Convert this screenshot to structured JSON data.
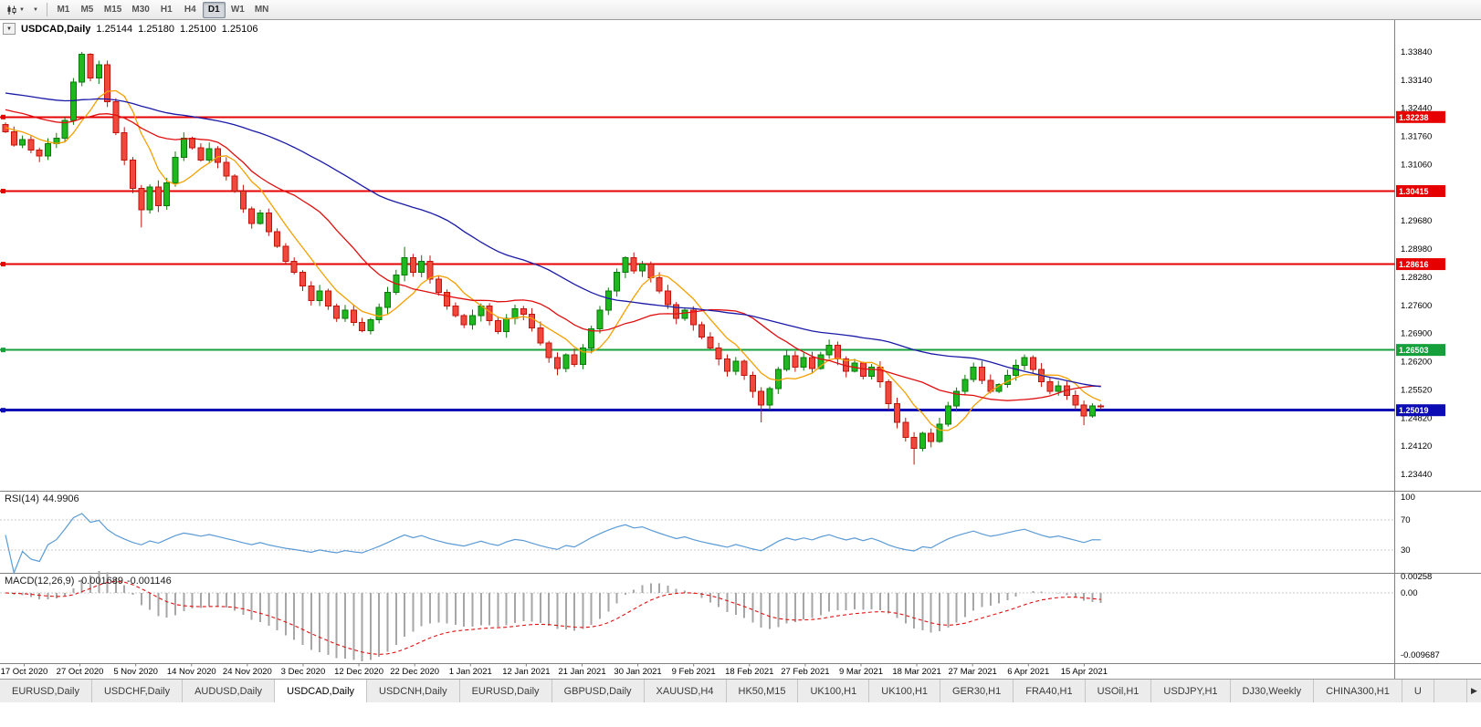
{
  "toolbar": {
    "timeframes": [
      "M1",
      "M5",
      "M15",
      "M30",
      "H1",
      "H4",
      "D1",
      "W1",
      "MN"
    ],
    "active": "D1"
  },
  "chart": {
    "header": {
      "symbol": "USDCAD,Daily",
      "open": "1.25144",
      "high": "1.25180",
      "low": "1.25100",
      "close": "1.25106"
    },
    "price_axis_labels": [
      "1.33840",
      "1.33140",
      "1.32440",
      "1.31760",
      "1.31060",
      "1.30360",
      "1.29680",
      "1.28980",
      "1.28280",
      "1.27600",
      "1.26900",
      "1.26200",
      "1.25520",
      "1.24820",
      "1.24120",
      "1.23440"
    ],
    "hlines": [
      {
        "price": 1.32238,
        "label": "1.32238",
        "color": "#e60000",
        "width": 2
      },
      {
        "price": 1.30415,
        "label": "1.30415",
        "color": "#e60000",
        "width": 2
      },
      {
        "price": 1.28616,
        "label": "1.28616",
        "color": "#e60000",
        "width": 2
      },
      {
        "price": 1.26503,
        "label": "1.26503",
        "color": "#16a03c",
        "width": 2
      },
      {
        "price": 1.25019,
        "label": "1.25019",
        "color": "#0c0cb4",
        "width": 3
      }
    ],
    "date_labels": [
      "17 Oct 2020",
      "27 Oct 2020",
      "5 Nov 2020",
      "14 Nov 2020",
      "24 Nov 2020",
      "3 Dec 2020",
      "12 Dec 2020",
      "22 Dec 2020",
      "1 Jan 2021",
      "12 Jan 2021",
      "21 Jan 2021",
      "30 Jan 2021",
      "9 Feb 2021",
      "18 Feb 2021",
      "27 Feb 2021",
      "9 Mar 2021",
      "18 Mar 2021",
      "27 Mar 2021",
      "6 Apr 2021",
      "15 Apr 2021"
    ]
  },
  "chart_data": {
    "type": "candlestick",
    "symbol": "USDCAD",
    "period": "Daily",
    "first_open": 1.3205,
    "closes": [
      1.3188,
      1.3155,
      1.3168,
      1.3142,
      1.3128,
      1.3158,
      1.3172,
      1.3215,
      1.331,
      1.3378,
      1.332,
      1.3352,
      1.3262,
      1.3185,
      1.3118,
      1.3048,
      1.2995,
      1.3052,
      1.3005,
      1.3062,
      1.3125,
      1.3172,
      1.3148,
      1.3118,
      1.3146,
      1.3112,
      1.3078,
      1.3042,
      1.2998,
      1.2962,
      1.2988,
      1.2942,
      1.2905,
      1.2868,
      1.2842,
      1.2808,
      1.2772,
      1.2795,
      1.2758,
      1.2728,
      1.2748,
      1.2718,
      1.2698,
      1.2725,
      1.2755,
      1.2792,
      1.2835,
      1.2878,
      1.2842,
      1.2868,
      1.2825,
      1.2792,
      1.2758,
      1.2735,
      1.2712,
      1.2735,
      1.2758,
      1.2722,
      1.2695,
      1.2728,
      1.2752,
      1.2738,
      1.2705,
      1.2668,
      1.2632,
      1.2605,
      1.2638,
      1.2615,
      1.2655,
      1.2702,
      1.2748,
      1.2795,
      1.2842,
      1.2878,
      1.2845,
      1.2862,
      1.2828,
      1.2795,
      1.2762,
      1.2728,
      1.2748,
      1.2712,
      1.2682,
      1.2655,
      1.2628,
      1.2598,
      1.2622,
      1.2588,
      1.2548,
      1.2515,
      1.2555,
      1.2602,
      1.2636,
      1.2608,
      1.2632,
      1.2605,
      1.2638,
      1.2662,
      1.2628,
      1.2598,
      1.2618,
      1.2585,
      1.2608,
      1.2572,
      1.2518,
      1.2472,
      1.2435,
      1.2408,
      1.2445,
      1.2425,
      1.2468,
      1.2512,
      1.2548,
      1.2578,
      1.2608,
      1.2575,
      1.2548,
      1.2565,
      1.2588,
      1.2612,
      1.2632,
      1.2602,
      1.2572,
      1.2548,
      1.2562,
      1.2538,
      1.2515,
      1.2488,
      1.2512,
      1.25106
    ],
    "wick_overrides": {
      "9": {
        "h": 1.3384
      },
      "16": {
        "l": 1.2952
      },
      "47": {
        "h": 1.2904
      },
      "65": {
        "l": 1.2588
      },
      "89": {
        "l": 1.2472
      },
      "107": {
        "l": 1.2368
      },
      "127": {
        "l": 1.2465
      }
    },
    "moving_averages": [
      {
        "name": "fast",
        "period": 7,
        "color": "#f5a000",
        "pad": 1.32
      },
      {
        "name": "mid",
        "period": 18,
        "color": "#e01010",
        "pad": 1.3245
      },
      {
        "name": "slow",
        "period": 45,
        "color": "#1a1aa8",
        "pad": 1.3285
      }
    ]
  },
  "rsi": {
    "title": "RSI(14)",
    "value": "44.9906",
    "period": 14,
    "color": "#5b9bd5",
    "levels": [
      {
        "v": 100,
        "label": "100"
      },
      {
        "v": 70,
        "label": "70"
      },
      {
        "v": 30,
        "label": "30"
      }
    ]
  },
  "macd": {
    "title": "MACD(12,26,9)",
    "value_macd": "-0.001689",
    "value_signal": "-0.001146",
    "fast": 12,
    "slow": 26,
    "signal": 9,
    "hist_color": "#a6a6a6",
    "signal_color": "#e01010",
    "axis": [
      {
        "v": 0.00258,
        "label": "0.00258"
      },
      {
        "v": 0,
        "label": "0.00"
      },
      {
        "v": -0.009687,
        "label": "-0.009687"
      }
    ]
  },
  "colors": {
    "up": "#1fb81f",
    "up_stroke": "#0a7a0a",
    "down": "#f0483c",
    "down_stroke": "#c0150c"
  },
  "tabs": {
    "items": [
      "EURUSD,Daily",
      "USDCHF,Daily",
      "AUDUSD,Daily",
      "USDCAD,Daily",
      "USDCNH,Daily",
      "EURUSD,Daily",
      "GBPUSD,Daily",
      "XAUUSD,H4",
      "HK50,M15",
      "UK100,H1",
      "UK100,H1",
      "GER30,H1",
      "FRA40,H1",
      "USOil,H1",
      "USDJPY,H1",
      "DJ30,Weekly",
      "CHINA300,H1",
      "U"
    ],
    "active_index": 3
  }
}
